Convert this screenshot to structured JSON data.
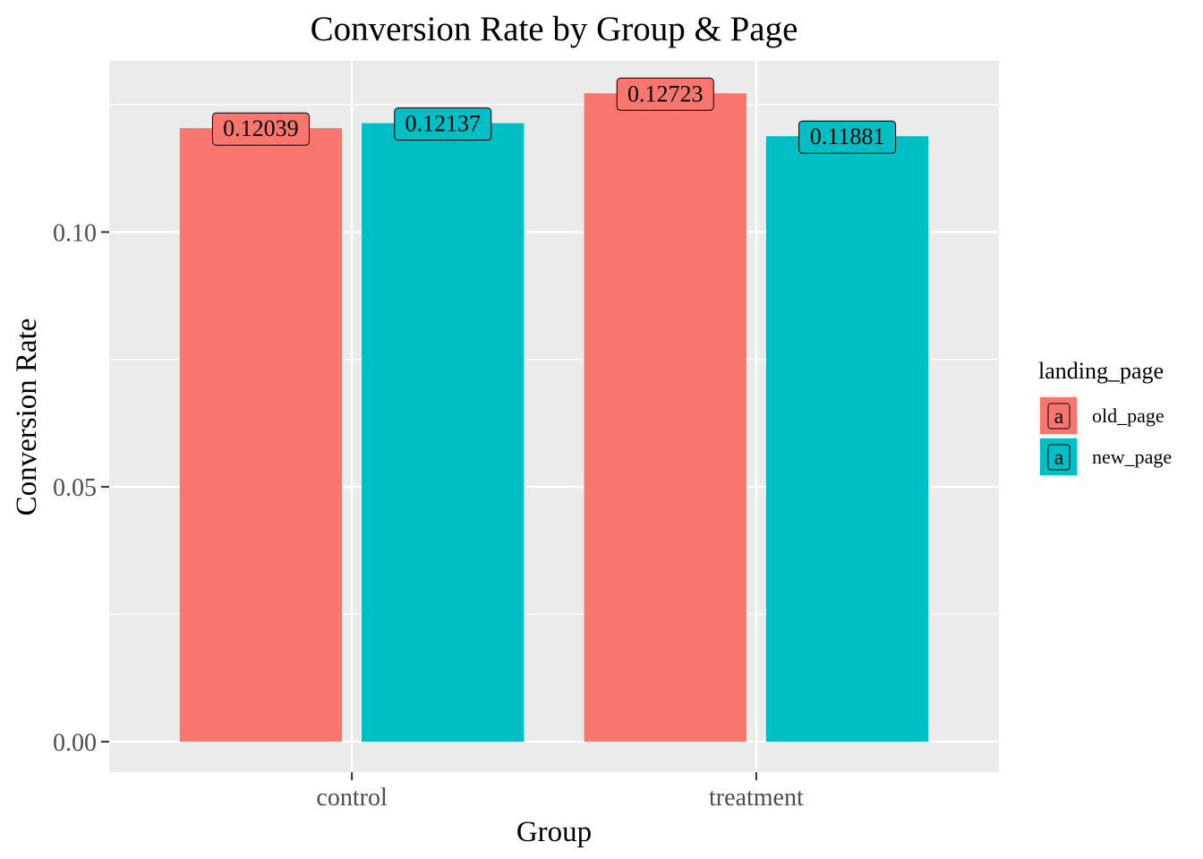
{
  "chart_data": {
    "type": "bar",
    "title": "Conversion Rate by Group & Page",
    "xlabel": "Group",
    "ylabel": "Conversion Rate",
    "categories": [
      "control",
      "treatment"
    ],
    "ylim": [
      -0.006,
      0.1336
    ],
    "yticks": [
      0.0,
      0.05,
      0.1
    ],
    "ytick_labels": [
      "0.00",
      "0.05",
      "0.10"
    ],
    "grid": true,
    "legend": {
      "title": "landing_page",
      "placement": "right",
      "key_glyph": "a"
    },
    "series": [
      {
        "name": "old_page",
        "color": "#F8766D",
        "values": [
          0.12039,
          0.12723
        ],
        "labels": [
          "0.12039",
          "0.12723"
        ]
      },
      {
        "name": "new_page",
        "color": "#00BFC4",
        "values": [
          0.12137,
          0.11881
        ],
        "labels": [
          "0.12137",
          "0.11881"
        ]
      }
    ]
  }
}
